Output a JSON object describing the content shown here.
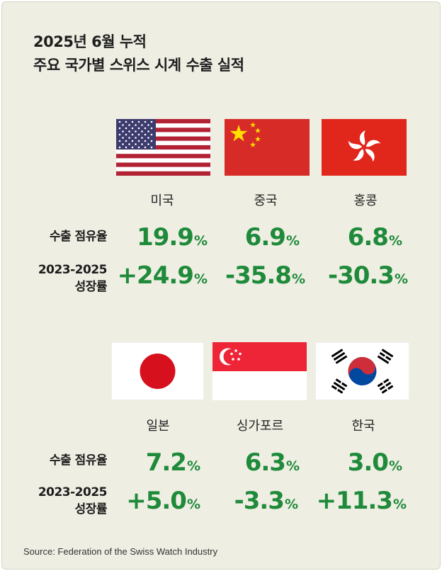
{
  "title": {
    "line1": "2025년 6월 누적",
    "line2": "주요 국가별 스위스 시계 수출 실적"
  },
  "row_labels": {
    "share": "수출 점유율",
    "growth_line1": "2023-2025",
    "growth_line2": "성장률"
  },
  "pct_symbol": "%",
  "groups": [
    {
      "countries": [
        {
          "name": "미국",
          "flag": "usa-flag",
          "share": "19.9",
          "growth": "+24.9"
        },
        {
          "name": "중국",
          "flag": "china-flag",
          "share": "6.9",
          "growth": "-35.8"
        },
        {
          "name": "홍콩",
          "flag": "hongkong-flag",
          "share": "6.8",
          "growth": "-30.3"
        }
      ]
    },
    {
      "countries": [
        {
          "name": "일본",
          "flag": "japan-flag",
          "share": "7.2",
          "growth": "+5.0"
        },
        {
          "name": "싱가포르",
          "flag": "singapore-flag",
          "share": "6.3",
          "growth": "-3.3"
        },
        {
          "name": "한국",
          "flag": "korea-flag",
          "share": "3.0",
          "growth": "+11.3"
        }
      ]
    }
  ],
  "colors": {
    "background": "#efeee3",
    "value_green": "#1e8a3a",
    "china_red": "#d62b27",
    "hongkong_red": "#e1261c",
    "singapore_red": "#ee2536",
    "japan_red": "#d7101e",
    "korea_blue": "#0047a0",
    "korea_red": "#cd2e3a",
    "usa_blue": "#3c3b6e",
    "usa_red": "#b22234"
  },
  "source": "Source: Federation of the Swiss Watch Industry"
}
